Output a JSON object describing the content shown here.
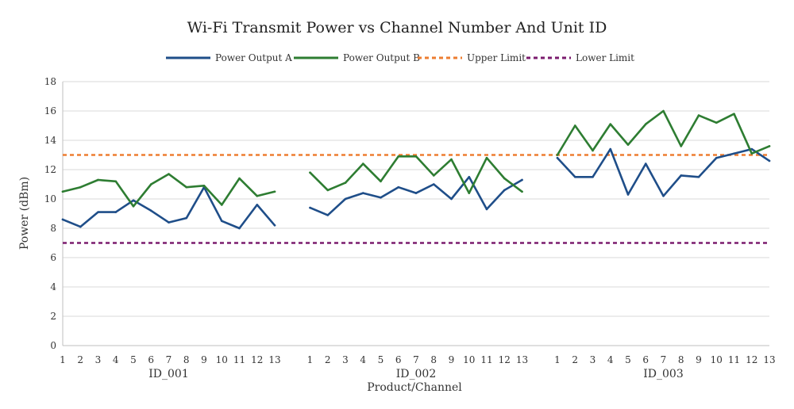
{
  "chart_data": {
    "type": "line",
    "title": "Wi-Fi Transmit Power vs Channel Number And Unit ID",
    "xlabel": "Product/Channel",
    "ylabel": "Power (dBm)",
    "ylim": [
      0,
      18
    ],
    "yticks": [
      "0",
      "2",
      "4",
      "6",
      "8",
      "10",
      "12",
      "14",
      "16",
      "18"
    ],
    "grid": "horizontal",
    "legend_position": "top",
    "groups": [
      {
        "label": "ID_001",
        "channels": [
          "1",
          "2",
          "3",
          "4",
          "5",
          "6",
          "7",
          "8",
          "9",
          "10",
          "11",
          "12",
          "13"
        ],
        "power_a": [
          8.6,
          8.1,
          9.1,
          9.1,
          9.9,
          9.2,
          8.4,
          8.7,
          10.8,
          8.5,
          8.0,
          9.6,
          8.2
        ],
        "power_b": [
          10.5,
          10.8,
          11.3,
          11.2,
          9.5,
          11.0,
          11.7,
          10.8,
          10.9,
          9.6,
          11.4,
          10.2,
          10.5
        ]
      },
      {
        "label": "ID_002",
        "channels": [
          "1",
          "2",
          "3",
          "4",
          "5",
          "6",
          "7",
          "8",
          "9",
          "10",
          "11",
          "12",
          "13"
        ],
        "power_a": [
          9.4,
          8.9,
          10.0,
          10.4,
          10.1,
          10.8,
          10.4,
          11.0,
          10.0,
          11.5,
          9.3,
          10.6,
          11.3
        ],
        "power_b": [
          11.8,
          10.6,
          11.1,
          12.4,
          11.2,
          12.9,
          12.9,
          11.6,
          12.7,
          10.4,
          12.8,
          11.4,
          10.5
        ]
      },
      {
        "label": "ID_003",
        "channels": [
          "1",
          "2",
          "3",
          "4",
          "5",
          "6",
          "7",
          "8",
          "9",
          "10",
          "11",
          "12",
          "13"
        ],
        "power_a": [
          12.8,
          11.5,
          11.5,
          13.4,
          10.3,
          12.4,
          10.2,
          11.6,
          11.5,
          12.8,
          13.1,
          13.4,
          12.6
        ],
        "power_b": [
          13.0,
          15.0,
          13.3,
          15.1,
          13.7,
          15.1,
          16.0,
          13.6,
          15.7,
          15.2,
          15.8,
          13.1,
          13.6
        ]
      }
    ],
    "series": [
      {
        "name": "Power Output A",
        "key": "power_a",
        "color": "#1f4e89",
        "style": "solid"
      },
      {
        "name": "Power Output B",
        "key": "power_b",
        "color": "#2e7d32",
        "style": "solid"
      },
      {
        "name": "Upper Limit",
        "constant": 13,
        "color": "#ed7d31",
        "style": "dashed"
      },
      {
        "name": "Lower Limit",
        "constant": 7,
        "color": "#7b1c6e",
        "style": "dashed"
      }
    ]
  }
}
